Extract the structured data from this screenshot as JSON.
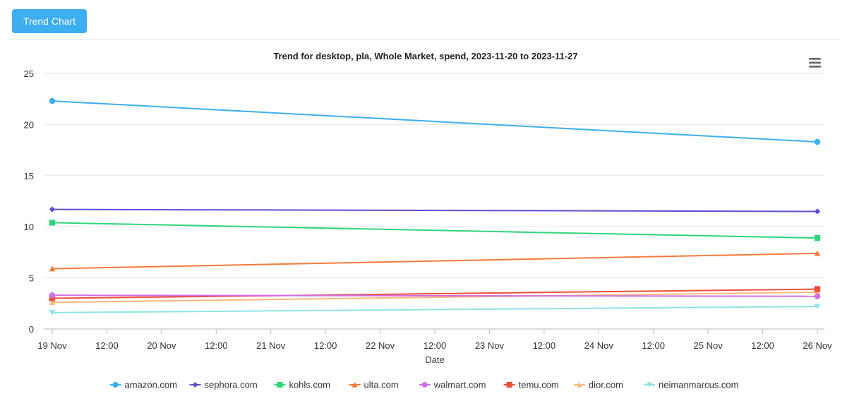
{
  "toolbar": {
    "tab_label": "Trend Chart"
  },
  "chart_data": {
    "type": "line",
    "title": "Trend for desktop, pla, Whole Market, spend, 2023-11-20 to 2023-11-27",
    "xlabel": "Date",
    "ylabel": "",
    "x_type": "datetime",
    "x_range": [
      "2023-11-19",
      "2023-11-26"
    ],
    "x_tick_labels": [
      "19 Nov",
      "12:00",
      "20 Nov",
      "12:00",
      "21 Nov",
      "12:00",
      "22 Nov",
      "12:00",
      "23 Nov",
      "12:00",
      "24 Nov",
      "12:00",
      "25 Nov",
      "12:00",
      "26 Nov"
    ],
    "y_ticks": [
      0,
      5,
      10,
      15,
      20,
      25
    ],
    "ylim": [
      0,
      25
    ],
    "grid": "horizontal",
    "legend_position": "bottom",
    "menu_icon": "hamburger-menu-icon",
    "series": [
      {
        "name": "amazon.com",
        "color": "#3daeef",
        "marker": "circle",
        "x": [
          "2023-11-19",
          "2023-11-26"
        ],
        "values": [
          22.3,
          18.3
        ]
      },
      {
        "name": "sephora.com",
        "color": "#5b4ed3",
        "marker": "diamond",
        "x": [
          "2023-11-19",
          "2023-11-26"
        ],
        "values": [
          11.7,
          11.5
        ]
      },
      {
        "name": "kohls.com",
        "color": "#2ed57a",
        "marker": "square",
        "x": [
          "2023-11-19",
          "2023-11-26"
        ],
        "values": [
          10.4,
          8.9
        ]
      },
      {
        "name": "ulta.com",
        "color": "#f57a3c",
        "marker": "triangle",
        "x": [
          "2023-11-19",
          "2023-11-26"
        ],
        "values": [
          5.9,
          7.4
        ]
      },
      {
        "name": "walmart.com",
        "color": "#d06fe6",
        "marker": "circle",
        "x": [
          "2023-11-19",
          "2023-11-26"
        ],
        "values": [
          3.3,
          3.2
        ]
      },
      {
        "name": "temu.com",
        "color": "#ee4d3b",
        "marker": "square",
        "x": [
          "2023-11-19",
          "2023-11-26"
        ],
        "values": [
          3.0,
          3.9
        ]
      },
      {
        "name": "dior.com",
        "color": "#f9b97a",
        "marker": "triangle",
        "x": [
          "2023-11-19",
          "2023-11-26"
        ],
        "values": [
          2.6,
          3.6
        ]
      },
      {
        "name": "neimanmarcus.com",
        "color": "#8fe3e6",
        "marker": "triangle-down",
        "x": [
          "2023-11-19",
          "2023-11-26"
        ],
        "values": [
          1.6,
          2.2
        ]
      }
    ]
  }
}
